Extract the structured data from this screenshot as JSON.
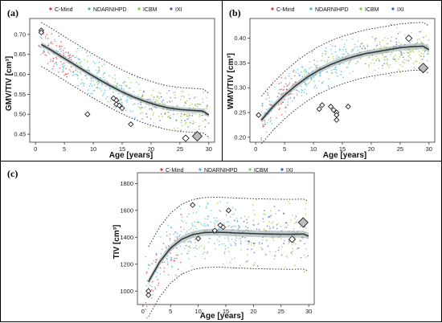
{
  "panels": [
    {
      "letter": "(a)"
    },
    {
      "letter": "(b)"
    },
    {
      "letter": "(c)"
    }
  ],
  "legend": [
    {
      "label": "C-Mind",
      "color": "#d83a3a"
    },
    {
      "label": "NDARNIHPD",
      "color": "#41b4e0"
    },
    {
      "label": "ICBM",
      "color": "#8ec63f"
    },
    {
      "label": "IXI",
      "color": "#3b5bbf"
    }
  ],
  "chart_data": [
    {
      "type": "scatter",
      "xlabel": "Age [years]",
      "ylabel": "GMV/TIV [cm³]",
      "xlim": [
        -1,
        31
      ],
      "ylim": [
        0.43,
        0.74
      ],
      "xticks": [
        0,
        5,
        10,
        15,
        20,
        25,
        30
      ],
      "yticks": [
        0.45,
        0.5,
        0.55,
        0.6,
        0.65,
        0.7
      ],
      "grid": false,
      "fit": {
        "x": [
          1,
          3,
          5,
          7,
          9,
          11,
          13,
          15,
          17,
          19,
          21,
          23,
          25,
          27,
          29,
          30
        ],
        "y": [
          0.675,
          0.658,
          0.64,
          0.622,
          0.604,
          0.587,
          0.571,
          0.556,
          0.543,
          0.532,
          0.523,
          0.516,
          0.512,
          0.51,
          0.508,
          0.498
        ]
      },
      "ci_band_halfwidth": 0.006,
      "prediction_band_halfwidth": 0.055,
      "points": [
        {
          "x": 1,
          "y": 0.71
        },
        {
          "x": 1,
          "y": 0.705
        },
        {
          "x": 9,
          "y": 0.5
        },
        {
          "x": 13.5,
          "y": 0.54
        },
        {
          "x": 14,
          "y": 0.535
        },
        {
          "x": 14,
          "y": 0.525
        },
        {
          "x": 14.5,
          "y": 0.522
        },
        {
          "x": 15,
          "y": 0.515
        },
        {
          "x": 16.5,
          "y": 0.475
        },
        {
          "x": 26,
          "y": 0.44
        },
        {
          "x": 28,
          "y": 0.445
        }
      ],
      "point_sizes": [
        3,
        3,
        3,
        3,
        3,
        3,
        3,
        3,
        3,
        4,
        6
      ]
    },
    {
      "type": "scatter",
      "xlabel": "Age [years]",
      "ylabel": "WMV/TIV [cm³]",
      "xlim": [
        -1,
        31
      ],
      "ylim": [
        0.19,
        0.44
      ],
      "xticks": [
        0,
        5,
        10,
        15,
        20,
        25,
        30
      ],
      "yticks": [
        0.2,
        0.25,
        0.3,
        0.35,
        0.4
      ],
      "grid": false,
      "fit": {
        "x": [
          1,
          3,
          5,
          7,
          9,
          11,
          13,
          15,
          17,
          19,
          21,
          23,
          25,
          27,
          29,
          30
        ],
        "y": [
          0.235,
          0.262,
          0.285,
          0.305,
          0.322,
          0.336,
          0.347,
          0.356,
          0.363,
          0.369,
          0.373,
          0.377,
          0.381,
          0.383,
          0.384,
          0.377
        ]
      },
      "ci_band_halfwidth": 0.006,
      "prediction_band_halfwidth": 0.048,
      "points": [
        {
          "x": 0.5,
          "y": 0.245
        },
        {
          "x": 11,
          "y": 0.257
        },
        {
          "x": 11.5,
          "y": 0.265
        },
        {
          "x": 13,
          "y": 0.262
        },
        {
          "x": 13.5,
          "y": 0.255
        },
        {
          "x": 14,
          "y": 0.25
        },
        {
          "x": 14,
          "y": 0.235
        },
        {
          "x": 14,
          "y": 0.245
        },
        {
          "x": 16,
          "y": 0.262
        },
        {
          "x": 26.5,
          "y": 0.4
        },
        {
          "x": 29,
          "y": 0.34
        }
      ],
      "point_sizes": [
        3,
        3,
        3,
        3,
        3,
        3,
        3,
        3,
        3,
        4,
        6
      ]
    },
    {
      "type": "scatter",
      "xlabel": "Age [years]",
      "ylabel": "TIV [cm³]",
      "xlim": [
        -1,
        31
      ],
      "ylim": [
        900,
        1880
      ],
      "xticks": [
        0,
        5,
        10,
        15,
        20,
        25,
        30
      ],
      "yticks": [
        1000,
        1200,
        1400,
        1600,
        1800
      ],
      "grid": false,
      "fit": {
        "x": [
          1,
          3,
          5,
          7,
          9,
          11,
          13,
          15,
          17,
          19,
          21,
          23,
          25,
          27,
          29,
          30
        ],
        "y": [
          1070,
          1215,
          1320,
          1385,
          1420,
          1435,
          1438,
          1436,
          1432,
          1429,
          1426,
          1424,
          1423,
          1422,
          1424,
          1410
        ]
      },
      "ci_band_halfwidth": 25,
      "prediction_band_halfwidth": 260,
      "points": [
        {
          "x": 1,
          "y": 1000
        },
        {
          "x": 1,
          "y": 970
        },
        {
          "x": 9,
          "y": 1640
        },
        {
          "x": 10,
          "y": 1390
        },
        {
          "x": 13,
          "y": 1450
        },
        {
          "x": 14,
          "y": 1490
        },
        {
          "x": 14.5,
          "y": 1475
        },
        {
          "x": 15.5,
          "y": 1600
        },
        {
          "x": 27,
          "y": 1385
        },
        {
          "x": 29,
          "y": 1510
        }
      ],
      "point_sizes": [
        3,
        3,
        3,
        3,
        3,
        3,
        3,
        3,
        4,
        6
      ]
    }
  ]
}
